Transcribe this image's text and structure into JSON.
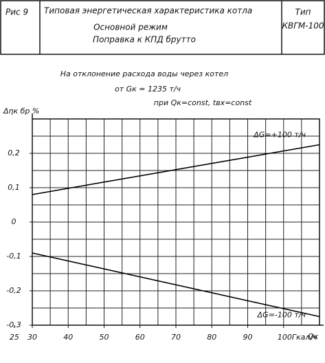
{
  "header": {
    "figure": "Рис 9",
    "title": "Типовая энергетическая характеристика котла",
    "mode": "Основной режим",
    "correction": "Поправка к КПД брутто",
    "type_label": "Тип",
    "type_value": "КВГМ-100"
  },
  "chart_data": {
    "type": "line",
    "title": "На отклонение расхода воды через котел",
    "subtitle": "от Gк = 1235 т/ч",
    "conditions": "при Qк=const, tвх=const",
    "y_label": "Δηк бр %",
    "x_label": "Qк",
    "x": [
      30,
      110
    ],
    "series": [
      {
        "name": "ΔG=+100 т/ч",
        "color": "#000000",
        "values": [
          0.08,
          0.225
        ]
      },
      {
        "name": "ΔG=-100 т/ч",
        "color": "#000000",
        "values": [
          -0.09,
          -0.275
        ]
      }
    ],
    "xlim": [
      30,
      110
    ],
    "ylim": [
      -0.3,
      0.3
    ],
    "xticks": [
      25,
      30,
      40,
      50,
      60,
      70,
      80,
      90,
      {
        "value": 100,
        "label": "100Гкал/ч"
      }
    ],
    "yticks": [
      {
        "value": 0.2,
        "label": "0,2"
      },
      {
        "value": 0.1,
        "label": "0,1"
      },
      0,
      {
        "value": -0.1,
        "label": "-0,1"
      },
      {
        "value": -0.2,
        "label": "-0,2"
      },
      {
        "value": -0.3,
        "label": "-0,3"
      }
    ],
    "xgrid": [
      35,
      40,
      45,
      50,
      55,
      60,
      65,
      70,
      75,
      80,
      85,
      90,
      95,
      100,
      105
    ],
    "ygrid": [
      -0.25,
      -0.2,
      -0.15,
      -0.1,
      -0.05,
      0,
      0.05,
      0.1,
      0.15,
      0.2,
      0.25
    ],
    "grid": true
  }
}
